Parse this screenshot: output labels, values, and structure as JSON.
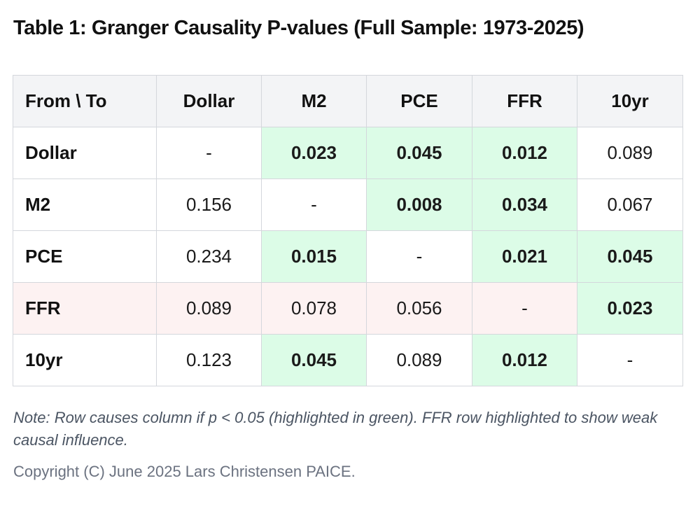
{
  "title": "Table 1: Granger Causality P-values (Full Sample: 1973-2025)",
  "table": {
    "corner_label": "From \\ To",
    "columns": [
      "Dollar",
      "M2",
      "PCE",
      "FFR",
      "10yr"
    ],
    "rows": [
      {
        "label": "Dollar",
        "highlight_row": false,
        "cells": [
          {
            "value": "-",
            "significant": false
          },
          {
            "value": "0.023",
            "significant": true
          },
          {
            "value": "0.045",
            "significant": true
          },
          {
            "value": "0.012",
            "significant": true
          },
          {
            "value": "0.089",
            "significant": false
          }
        ]
      },
      {
        "label": "M2",
        "highlight_row": false,
        "cells": [
          {
            "value": "0.156",
            "significant": false
          },
          {
            "value": "-",
            "significant": false
          },
          {
            "value": "0.008",
            "significant": true
          },
          {
            "value": "0.034",
            "significant": true
          },
          {
            "value": "0.067",
            "significant": false
          }
        ]
      },
      {
        "label": "PCE",
        "highlight_row": false,
        "cells": [
          {
            "value": "0.234",
            "significant": false
          },
          {
            "value": "0.015",
            "significant": true
          },
          {
            "value": "-",
            "significant": false
          },
          {
            "value": "0.021",
            "significant": true
          },
          {
            "value": "0.045",
            "significant": true
          }
        ]
      },
      {
        "label": "FFR",
        "highlight_row": true,
        "cells": [
          {
            "value": "0.089",
            "significant": false
          },
          {
            "value": "0.078",
            "significant": false
          },
          {
            "value": "0.056",
            "significant": false
          },
          {
            "value": "-",
            "significant": false
          },
          {
            "value": "0.023",
            "significant": true
          }
        ]
      },
      {
        "label": "10yr",
        "highlight_row": false,
        "cells": [
          {
            "value": "0.123",
            "significant": false
          },
          {
            "value": "0.045",
            "significant": true
          },
          {
            "value": "0.089",
            "significant": false
          },
          {
            "value": "0.012",
            "significant": true
          },
          {
            "value": "-",
            "significant": false
          }
        ]
      }
    ]
  },
  "note": "Note: Row causes column if p < 0.05 (highlighted in green). FFR row highlighted to show weak causal influence.",
  "copyright": "Copyright (C) June 2025 Lars Christensen PAICE.",
  "colors": {
    "significant_bg": "#dcfce7",
    "weak_row_bg": "#fdf2f2",
    "header_bg": "#f3f4f6",
    "border": "#d4d7dc"
  }
}
